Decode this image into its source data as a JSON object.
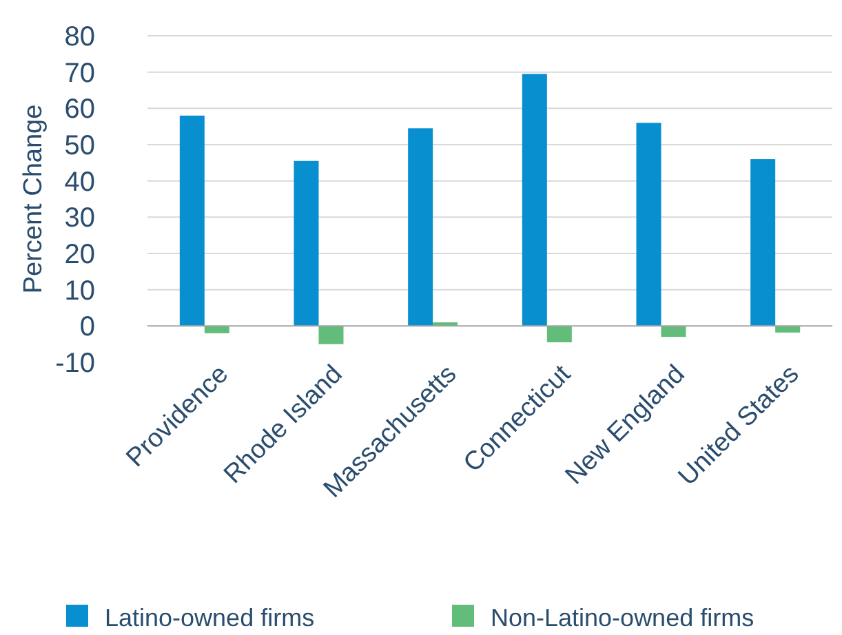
{
  "chart_data": {
    "type": "bar",
    "ylabel": "Percent Change",
    "categories": [
      "Providence",
      "Rhode Island",
      "Massachusetts",
      "Connecticut",
      "New England",
      "United States"
    ],
    "series": [
      {
        "name": "Latino-owned firms",
        "color": "#088fd0",
        "values": [
          58,
          45.5,
          54.5,
          69.5,
          56,
          46
        ]
      },
      {
        "name": "Non-Latino-owned firms",
        "color": "#62bd7a",
        "values": [
          -2,
          -5,
          1,
          -4.5,
          -3,
          -1.8
        ]
      }
    ],
    "ylim": [
      -10,
      80
    ],
    "yticks": [
      -10,
      0,
      10,
      20,
      30,
      40,
      50,
      60,
      70,
      80
    ],
    "grid": "y",
    "legend": "bottom"
  }
}
